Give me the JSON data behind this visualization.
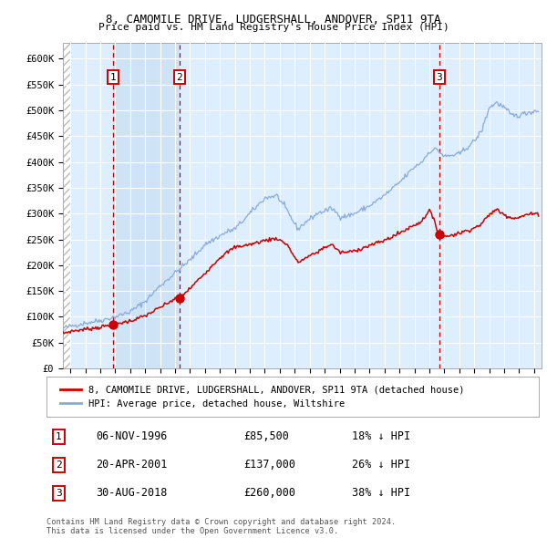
{
  "title1": "8, CAMOMILE DRIVE, LUDGERSHALL, ANDOVER, SP11 9TA",
  "title2": "Price paid vs. HM Land Registry's House Price Index (HPI)",
  "legend_label_red": "8, CAMOMILE DRIVE, LUDGERSHALL, ANDOVER, SP11 9TA (detached house)",
  "legend_label_blue": "HPI: Average price, detached house, Wiltshire",
  "transactions": [
    {
      "num": 1,
      "date_label": "06-NOV-1996",
      "price": 85500,
      "pct": "18%",
      "x_year": 1996.85
    },
    {
      "num": 2,
      "date_label": "20-APR-2001",
      "price": 137000,
      "pct": "26%",
      "x_year": 2001.3
    },
    {
      "num": 3,
      "date_label": "30-AUG-2018",
      "price": 260000,
      "pct": "38%",
      "x_year": 2018.66
    }
  ],
  "footer1": "Contains HM Land Registry data © Crown copyright and database right 2024.",
  "footer2": "This data is licensed under the Open Government Licence v3.0.",
  "ylim": [
    0,
    630000
  ],
  "xlim_start": 1993.5,
  "xlim_end": 2025.5,
  "plot_bg": "#ddeeff",
  "hatch_bg": "#ffffff",
  "grid_color": "#ffffff",
  "red_color": "#cc0000",
  "blue_color": "#88aadd"
}
